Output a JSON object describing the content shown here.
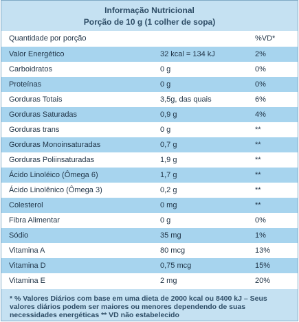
{
  "header": {
    "title": "Informação Nutricional",
    "subtitle": "Porção de 10 g (1 colher de sopa)"
  },
  "columns": {
    "name": "Quantidade por porção",
    "vd": "%VD*"
  },
  "rows": [
    {
      "name": "Valor Energético",
      "amount": "32 kcal = 134 kJ",
      "vd": "2%"
    },
    {
      "name": "Carboidratos",
      "amount": "0 g",
      "vd": "0%"
    },
    {
      "name": "Proteínas",
      "amount": "0 g",
      "vd": "0%"
    },
    {
      "name": "Gorduras Totais",
      "amount": "3,5g, das quais",
      "vd": "6%"
    },
    {
      "name": "Gorduras Saturadas",
      "amount": "0,9 g",
      "vd": "4%"
    },
    {
      "name": "Gorduras trans",
      "amount": "0 g",
      "vd": "**"
    },
    {
      "name": "Gorduras Monoinsaturadas",
      "amount": "0,7 g",
      "vd": "**"
    },
    {
      "name": "Gorduras Poliinsaturadas",
      "amount": "1,9 g",
      "vd": "**"
    },
    {
      "name": "Ácido Linoléico (Ômega 6)",
      "amount": "1,7 g",
      "vd": "**"
    },
    {
      "name": "Ácido Linolênico (Ômega 3)",
      "amount": "0,2 g",
      "vd": "**"
    },
    {
      "name": "Colesterol",
      "amount": "0 mg",
      "vd": "**"
    },
    {
      "name": "Fibra Alimentar",
      "amount": "0 g",
      "vd": "0%"
    },
    {
      "name": "Sódio",
      "amount": "35 mg",
      "vd": "1%"
    },
    {
      "name": "Vitamina A",
      "amount": "80 mcg",
      "vd": "13%"
    },
    {
      "name": "Vitamina D",
      "amount": "0,75 mcg",
      "vd": "15%"
    },
    {
      "name": "Vitamina E",
      "amount": "2 mg",
      "vd": "20%"
    }
  ],
  "footer": {
    "line1": "* % Valores Diários com base em uma  dieta de 2000 kcal ou 8400 kJ – Seus",
    "line2": "valores diários podem ser maiores ou menores dependendo de suas",
    "line3": "necessidades energéticas ** VD não estabelecido"
  },
  "colors": {
    "header_bg": "#c5e1f2",
    "dark_row": "#a7d4ee",
    "light_row": "#ffffff",
    "border": "#7fa9c4",
    "text": "#1f3346"
  }
}
